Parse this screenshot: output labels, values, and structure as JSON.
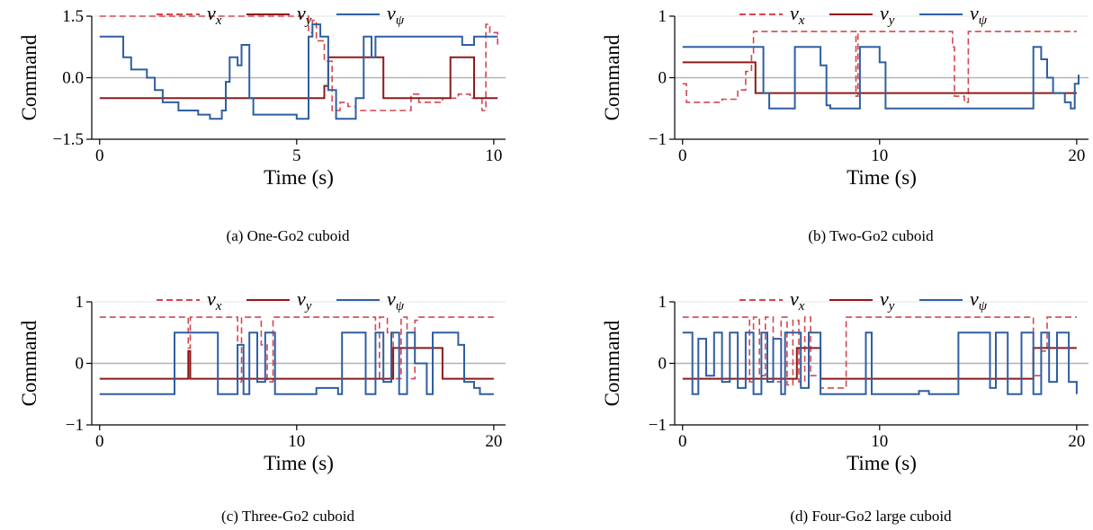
{
  "colors": {
    "vx": "#d2484f",
    "vy": "#8e1a1a",
    "vpsi": "#2f5fa0",
    "zero_line": "#b3b3b3",
    "grid": "#e6e6e6"
  },
  "legend": [
    {
      "key": "vx",
      "base": "v",
      "sub": "x",
      "style": "dashed"
    },
    {
      "key": "vy",
      "base": "v",
      "sub": "y",
      "style": "solid"
    },
    {
      "key": "vpsi",
      "base": "v",
      "sub": "ψ",
      "style": "solid"
    }
  ],
  "chart_data": [
    {
      "type": "line",
      "caption": "(a) One-Go2 cuboid",
      "xlabel": "Time (s)",
      "ylabel": "Command",
      "xlim": [
        -0.2,
        10.3
      ],
      "ylim": [
        -1.5,
        1.5
      ],
      "xticks": [
        0,
        5,
        10
      ],
      "xtick_labels": [
        "0",
        "5",
        "10"
      ],
      "yticks": [
        -1.5,
        0,
        1.5
      ],
      "ytick_labels": [
        "−1.5",
        "0.0",
        "1.5"
      ],
      "legend_position": "top",
      "series": [
        {
          "name": "vx",
          "x": [
            0,
            5.2,
            5.3,
            5.4,
            5.5,
            5.7,
            5.9,
            6.1,
            6.3,
            6.5,
            7.6,
            7.9,
            8.1,
            8.3,
            8.7,
            9.1,
            9.3,
            9.4,
            9.7,
            9.8,
            9.9,
            10.1
          ],
          "y": [
            1.5,
            1.5,
            1.1,
            1.4,
            0.9,
            0.4,
            -0.8,
            -0.6,
            -0.7,
            -0.8,
            -0.8,
            -0.4,
            -0.6,
            -0.6,
            -0.5,
            -0.4,
            -0.4,
            -0.5,
            -0.8,
            1.3,
            1.1,
            0.8
          ]
        },
        {
          "name": "vy",
          "x": [
            0,
            5.6,
            5.7,
            5.8,
            7.1,
            7.2,
            8.8,
            8.9,
            9.4,
            9.5,
            10.1
          ],
          "y": [
            -0.5,
            -0.5,
            -0.2,
            0.5,
            0.5,
            -0.5,
            -0.5,
            0.5,
            0.5,
            -0.5,
            -0.5
          ]
        },
        {
          "name": "vpsi",
          "x": [
            0,
            0.5,
            0.6,
            0.8,
            1.2,
            1.4,
            1.6,
            2.0,
            2.5,
            2.8,
            3.1,
            3.2,
            3.3,
            3.5,
            3.6,
            3.8,
            3.9,
            4.5,
            5.0,
            5.1,
            5.3,
            5.4,
            5.6,
            5.8,
            6.0,
            6.4,
            6.5,
            6.7,
            6.9,
            7.0,
            7.3,
            7.5,
            8.1,
            8.4,
            8.6,
            8.8,
            9.2,
            9.5,
            10.1
          ],
          "y": [
            1.0,
            1.0,
            0.5,
            0.2,
            -0.0,
            -0.3,
            -0.6,
            -0.8,
            -0.9,
            -1.0,
            -0.8,
            -0.1,
            0.5,
            0.3,
            0.8,
            -0.5,
            -0.9,
            -0.9,
            -1.0,
            -1.0,
            1.0,
            1.3,
            1.0,
            -0.3,
            -1.0,
            -1.0,
            -0.5,
            1.0,
            0.5,
            1.0,
            1.0,
            1.0,
            1.0,
            1.0,
            1.0,
            1.0,
            0.8,
            1.0,
            1.0
          ]
        }
      ]
    },
    {
      "type": "line",
      "caption": "(b) Two-Go2 cuboid",
      "xlabel": "Time (s)",
      "ylabel": "Command",
      "xlim": [
        -0.4,
        20.6
      ],
      "ylim": [
        -1,
        1
      ],
      "xticks": [
        0,
        10,
        20
      ],
      "xtick_labels": [
        "0",
        "10",
        "20"
      ],
      "yticks": [
        -1,
        0,
        1
      ],
      "ytick_labels": [
        "−1",
        "0",
        "1"
      ],
      "legend_position": "top",
      "series": [
        {
          "name": "vx",
          "x": [
            0,
            0.2,
            1.0,
            2.0,
            2.8,
            3.2,
            3.5,
            3.6,
            8.7,
            8.8,
            8.9,
            9.0,
            13.6,
            13.7,
            13.8,
            14.3,
            14.5,
            20.0
          ],
          "y": [
            -0.1,
            -0.4,
            -0.4,
            -0.35,
            -0.2,
            0.1,
            0.4,
            0.75,
            0.75,
            -0.3,
            0.75,
            0.75,
            0.75,
            0.5,
            -0.3,
            -0.4,
            0.75,
            0.75
          ]
        },
        {
          "name": "vy",
          "x": [
            0,
            3.6,
            3.7,
            20.0
          ],
          "y": [
            0.25,
            0.25,
            -0.25,
            -0.25
          ]
        },
        {
          "name": "vpsi",
          "x": [
            0,
            3.8,
            4.1,
            4.4,
            5.6,
            5.7,
            6.6,
            7.0,
            7.3,
            7.5,
            8.8,
            9.0,
            9.2,
            10.0,
            10.3,
            17.5,
            17.8,
            18.0,
            18.2,
            18.5,
            18.8,
            19.4,
            19.7,
            19.9,
            20.1
          ],
          "y": [
            0.5,
            0.5,
            -0.25,
            -0.5,
            -0.5,
            0.5,
            0.5,
            0.2,
            -0.45,
            -0.5,
            -0.5,
            0.5,
            0.5,
            0.25,
            -0.5,
            -0.5,
            0.5,
            0.5,
            0.3,
            0.0,
            -0.25,
            -0.4,
            -0.5,
            -0.1,
            0.05
          ]
        }
      ]
    },
    {
      "type": "line",
      "caption": "(c) Three-Go2 cuboid",
      "xlabel": "Time (s)",
      "ylabel": "Command",
      "xlim": [
        -0.4,
        20.6
      ],
      "ylim": [
        -1,
        1
      ],
      "xticks": [
        0,
        10,
        20
      ],
      "xtick_labels": [
        "0",
        "10",
        "20"
      ],
      "yticks": [
        -1,
        0,
        1
      ],
      "ytick_labels": [
        "−1",
        "0",
        "1"
      ],
      "legend_position": "top",
      "series": [
        {
          "name": "vx",
          "x": [
            0,
            4.3,
            4.5,
            4.6,
            6.8,
            7.0,
            7.2,
            7.4,
            8.2,
            8.5,
            8.8,
            13.8,
            14.0,
            14.2,
            14.6,
            14.9,
            15.3,
            15.6,
            16.0,
            16.2,
            20.0
          ],
          "y": [
            0.75,
            0.75,
            0.25,
            0.75,
            0.75,
            -0.3,
            0.75,
            0.75,
            0.3,
            -0.3,
            0.75,
            0.75,
            -0.25,
            0.75,
            0.5,
            -0.25,
            0.75,
            -0.25,
            0.7,
            0.75,
            0.75
          ]
        },
        {
          "name": "vy",
          "x": [
            0,
            4.5,
            4.5,
            4.6,
            4.6,
            14.8,
            14.9,
            17.3,
            17.4,
            20.0
          ],
          "y": [
            -0.25,
            -0.25,
            0.2,
            0.2,
            -0.25,
            -0.25,
            0.25,
            0.25,
            -0.25,
            -0.25
          ]
        },
        {
          "name": "vpsi",
          "x": [
            0,
            3.5,
            3.8,
            5.8,
            6.0,
            6.8,
            7.0,
            7.3,
            7.6,
            8.0,
            8.4,
            8.9,
            9.1,
            10.5,
            11.0,
            12.1,
            12.3,
            13.0,
            13.5,
            14.0,
            14.4,
            14.8,
            15.2,
            15.6,
            16.0,
            16.6,
            16.9,
            17.3,
            17.9,
            18.2,
            18.5,
            19.0,
            19.3,
            20.0
          ],
          "y": [
            -0.5,
            -0.5,
            0.5,
            0.5,
            -0.5,
            -0.5,
            0.3,
            -0.5,
            0.5,
            -0.3,
            0.5,
            -0.5,
            -0.5,
            -0.5,
            -0.4,
            -0.5,
            0.5,
            0.5,
            -0.5,
            0.5,
            -0.3,
            0.5,
            -0.5,
            0.5,
            0.0,
            -0.5,
            0.5,
            0.5,
            0.5,
            0.3,
            -0.3,
            -0.4,
            -0.5,
            -0.5
          ]
        }
      ]
    },
    {
      "type": "line",
      "caption": "(d) Four-Go2 large cuboid",
      "xlabel": "Time (s)",
      "ylabel": "Command",
      "xlim": [
        -0.4,
        20.6
      ],
      "ylim": [
        -1,
        1
      ],
      "xticks": [
        0,
        10,
        20
      ],
      "xtick_labels": [
        "0",
        "10",
        "20"
      ],
      "yticks": [
        -1,
        0,
        1
      ],
      "ytick_labels": [
        "−1",
        "0",
        "1"
      ],
      "legend_position": "top",
      "series": [
        {
          "name": "vx",
          "x": [
            0,
            3.2,
            3.4,
            3.6,
            3.9,
            4.2,
            4.6,
            5.0,
            5.3,
            5.6,
            5.9,
            6.2,
            6.5,
            7.0,
            8.1,
            8.3,
            17.6,
            17.8,
            18.2,
            18.5,
            20.0
          ],
          "y": [
            0.75,
            0.75,
            -0.3,
            0.75,
            -0.2,
            0.75,
            -0.3,
            0.75,
            -0.35,
            0.7,
            -0.3,
            0.75,
            -0.2,
            -0.4,
            -0.4,
            0.75,
            0.75,
            -0.2,
            0.2,
            0.75,
            0.75
          ]
        },
        {
          "name": "vy",
          "x": [
            0,
            5.7,
            5.8,
            6.9,
            7.0,
            17.7,
            17.8,
            20.0
          ],
          "y": [
            -0.25,
            -0.25,
            0.25,
            0.25,
            -0.25,
            -0.25,
            0.25,
            0.25
          ]
        },
        {
          "name": "vpsi",
          "x": [
            0,
            0.5,
            0.8,
            1.2,
            1.6,
            2.0,
            2.4,
            2.8,
            3.2,
            3.6,
            4.0,
            4.3,
            4.6,
            5.0,
            5.2,
            5.5,
            6.0,
            6.4,
            7.0,
            9.0,
            9.3,
            9.6,
            11.5,
            12.0,
            12.5,
            13.2,
            14.0,
            15.3,
            15.6,
            15.9,
            16.5,
            17.2,
            17.8,
            18.2,
            18.6,
            19.0,
            19.6,
            20.0
          ],
          "y": [
            0.5,
            -0.5,
            0.4,
            -0.2,
            0.5,
            -0.3,
            0.5,
            -0.4,
            0.5,
            -0.5,
            0.5,
            -0.3,
            0.4,
            -0.5,
            0.5,
            0.5,
            -0.4,
            0.5,
            -0.5,
            -0.5,
            0.5,
            -0.5,
            -0.5,
            -0.45,
            -0.5,
            -0.5,
            0.5,
            0.5,
            -0.4,
            0.5,
            -0.5,
            0.5,
            -0.5,
            0.5,
            -0.3,
            0.5,
            -0.3,
            -0.5
          ]
        }
      ]
    }
  ]
}
